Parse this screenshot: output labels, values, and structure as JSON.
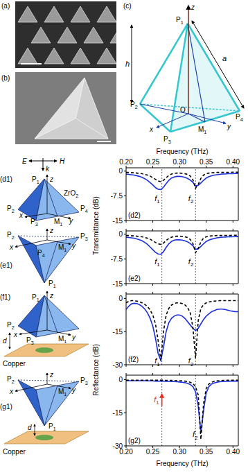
{
  "chart_data": [
    {
      "type": "line",
      "panel": "(d2)",
      "x_label": "Frequency (THz)",
      "y_label": "Transmittance (dB)",
      "x": [
        0.2,
        0.205,
        0.21,
        0.215,
        0.22,
        0.225,
        0.23,
        0.235,
        0.24,
        0.245,
        0.25,
        0.255,
        0.26,
        0.265,
        0.27,
        0.275,
        0.28,
        0.285,
        0.29,
        0.295,
        0.3,
        0.305,
        0.31,
        0.315,
        0.32,
        0.325,
        0.33,
        0.335,
        0.34,
        0.345,
        0.35,
        0.355,
        0.36,
        0.365,
        0.37,
        0.375,
        0.38,
        0.385,
        0.39,
        0.395,
        0.4,
        0.405,
        0.41
      ],
      "series": [
        {
          "color": "#1a2fe0",
          "line_style": "solid",
          "values": [
            -0.9,
            -1,
            -1.1,
            -1.2,
            -1.4,
            -1.6,
            -1.9,
            -2.3,
            -2.8,
            -3.5,
            -4.2,
            -5.0,
            -5.5,
            -5.6,
            -4.9,
            -3.8,
            -2.8,
            -2.1,
            -1.8,
            -1.6,
            -1.6,
            -1.7,
            -1.9,
            -2.2,
            -2.7,
            -3.4,
            -4.5,
            -4.3,
            -3.6,
            -2.8,
            -2.1,
            -1.7,
            -1.4,
            -1.2,
            -1.1,
            -1.0,
            -0.9,
            -0.9,
            -0.8,
            -0.8,
            -0.8,
            -0.7,
            -0.7
          ]
        },
        {
          "color": "#000000",
          "line_style": "dashed",
          "values": [
            -0.4,
            -0.4,
            -0.5,
            -0.5,
            -0.6,
            -0.7,
            -0.8,
            -1.0,
            -1.2,
            -1.5,
            -2.0,
            -2.5,
            -3.0,
            -3.2,
            -2.8,
            -2.0,
            -1.3,
            -0.9,
            -0.7,
            -0.6,
            -0.6,
            -0.7,
            -0.8,
            -1.0,
            -1.5,
            -2.6,
            -5.2,
            -4.0,
            -2.2,
            -1.2,
            -0.8,
            -0.6,
            -0.5,
            -0.5,
            -0.4,
            -0.4,
            -0.4,
            -0.4,
            -0.4,
            -0.4,
            -0.3,
            -0.3,
            -0.3
          ]
        }
      ],
      "xlim": [
        0.2,
        0.41
      ],
      "xticks": [
        {
          "value": 0.2,
          "label": "0.20"
        },
        0.25,
        {
          "value": 0.3,
          "label": "0.30"
        },
        0.35,
        {
          "value": 0.4,
          "label": "0.40"
        }
      ],
      "ylim": [
        -15,
        1
      ],
      "yticks": [
        -15,
        -7.5,
        0
      ],
      "vlines": [
        0.267,
        0.33
      ],
      "annotations": [
        {
          "text": "f1",
          "x": 0.267,
          "y": -9
        },
        {
          "text": "f2",
          "x": 0.33,
          "y": -9
        }
      ]
    },
    {
      "type": "line",
      "panel": "(e2)",
      "tick_labels": "y",
      "x": [
        0.2,
        0.205,
        0.21,
        0.215,
        0.22,
        0.225,
        0.23,
        0.235,
        0.24,
        0.245,
        0.25,
        0.255,
        0.26,
        0.265,
        0.27,
        0.275,
        0.28,
        0.285,
        0.29,
        0.295,
        0.3,
        0.305,
        0.31,
        0.315,
        0.32,
        0.325,
        0.33,
        0.335,
        0.34,
        0.345,
        0.35,
        0.355,
        0.36,
        0.365,
        0.37,
        0.375,
        0.38,
        0.385,
        0.39,
        0.395,
        0.4,
        0.405,
        0.41
      ],
      "series": [
        {
          "color": "#1a2fe0",
          "line_style": "solid",
          "values": [
            -0.9,
            -1,
            -1.1,
            -1.2,
            -1.4,
            -1.7,
            -2.0,
            -2.5,
            -3.1,
            -3.9,
            -4.7,
            -5.5,
            -6.0,
            -6.1,
            -5.3,
            -4.0,
            -2.9,
            -2.2,
            -1.8,
            -1.7,
            -1.7,
            -1.8,
            -2.0,
            -2.3,
            -2.8,
            -3.5,
            -4.6,
            -4.4,
            -3.7,
            -2.9,
            -2.2,
            -1.8,
            -1.5,
            -1.3,
            -1.1,
            -1.0,
            -0.9,
            -0.9,
            -0.8,
            -0.8,
            -0.8,
            -0.7,
            -0.7
          ]
        },
        {
          "color": "#000000",
          "line_style": "dashed",
          "values": [
            -0.4,
            -0.4,
            -0.5,
            -0.5,
            -0.6,
            -0.7,
            -0.8,
            -1.0,
            -1.2,
            -1.5,
            -2.0,
            -2.5,
            -2.9,
            -3.1,
            -2.7,
            -1.9,
            -1.3,
            -0.9,
            -0.7,
            -0.6,
            -0.6,
            -0.7,
            -0.8,
            -1.0,
            -1.6,
            -2.8,
            -5.6,
            -4.3,
            -2.3,
            -1.2,
            -0.8,
            -0.6,
            -0.5,
            -0.5,
            -0.4,
            -0.4,
            -0.4,
            -0.4,
            -0.4,
            -0.4,
            -0.3,
            -0.3,
            -0.3
          ]
        }
      ],
      "xlim": [
        0.2,
        0.41
      ],
      "xticks": [
        {
          "value": 0.2,
          "label": "0.20"
        },
        0.25,
        {
          "value": 0.3,
          "label": "0.30"
        },
        0.35,
        {
          "value": 0.4,
          "label": "0.40"
        }
      ],
      "ylim": [
        -15,
        1
      ],
      "yticks": [
        -15,
        -7.5,
        0
      ],
      "vlines": [
        0.267,
        0.33
      ],
      "annotations": [
        {
          "text": "f1",
          "x": 0.267,
          "y": -9
        },
        {
          "text": "f2",
          "x": 0.33,
          "y": -9
        }
      ]
    },
    {
      "type": "line",
      "panel": "(f2)",
      "y_label": "Reflectance (dB)",
      "tick_labels": "y",
      "x": [
        0.2,
        0.205,
        0.21,
        0.215,
        0.22,
        0.225,
        0.23,
        0.235,
        0.24,
        0.245,
        0.25,
        0.255,
        0.26,
        0.265,
        0.27,
        0.275,
        0.28,
        0.285,
        0.29,
        0.295,
        0.3,
        0.305,
        0.31,
        0.315,
        0.32,
        0.325,
        0.33,
        0.335,
        0.34,
        0.345,
        0.35,
        0.355,
        0.36,
        0.365,
        0.37,
        0.375,
        0.38,
        0.385,
        0.39,
        0.395,
        0.4,
        0.405,
        0.41
      ],
      "series": [
        {
          "color": "#1a2fe0",
          "line_style": "solid",
          "values": [
            -5,
            -3.5,
            -2.5,
            -2.2,
            -2.3,
            -2.8,
            -3.6,
            -4.8,
            -6.5,
            -9,
            -12.5,
            -18,
            -25,
            -28,
            -22,
            -15,
            -11,
            -9,
            -8,
            -7.5,
            -7.5,
            -8,
            -9,
            -10.5,
            -12,
            -13.5,
            -14.5,
            -13.5,
            -11.5,
            -9.5,
            -8,
            -7,
            -6,
            -5.5,
            -5,
            -4.8,
            -4.8,
            -5,
            -5.3,
            -5.6,
            -5.8,
            -6,
            -6
          ]
        },
        {
          "color": "#000000",
          "line_style": "dashed",
          "values": [
            -2,
            -1.3,
            -1,
            -1,
            -1.2,
            -1.5,
            -2,
            -2.7,
            -3.7,
            -5.2,
            -7.5,
            -11.5,
            -19,
            -28,
            -15,
            -7.5,
            -4.5,
            -3,
            -2.3,
            -2,
            -2,
            -2.3,
            -2.9,
            -4,
            -6.5,
            -13,
            -27,
            -10,
            -4.5,
            -2.8,
            -2,
            -1.6,
            -1.4,
            -1.2,
            -1.1,
            -1,
            -1,
            -1,
            -1,
            -1,
            -1,
            -1,
            -1
          ]
        }
      ],
      "xlim": [
        0.2,
        0.41
      ],
      "xticks": [
        {
          "value": 0.2,
          "label": "0.20"
        },
        0.25,
        {
          "value": 0.3,
          "label": "0.30"
        },
        0.35,
        {
          "value": 0.4,
          "label": "0.40"
        }
      ],
      "ylim": [
        -30,
        2
      ],
      "yticks": [
        -30,
        -15,
        0
      ],
      "vlines": [
        0.267,
        0.33
      ],
      "annotations": [
        {
          "text": "f1",
          "x": 0.267,
          "y": -29.5
        },
        {
          "text": "f2",
          "x": 0.33,
          "y": -29.5
        }
      ]
    },
    {
      "type": "line",
      "panel": "(g2)",
      "x_label": "Frequency (THz)",
      "x": [
        0.2,
        0.205,
        0.21,
        0.215,
        0.22,
        0.225,
        0.23,
        0.235,
        0.24,
        0.245,
        0.25,
        0.255,
        0.26,
        0.265,
        0.27,
        0.275,
        0.28,
        0.285,
        0.29,
        0.295,
        0.3,
        0.305,
        0.31,
        0.315,
        0.32,
        0.325,
        0.33,
        0.335,
        0.34,
        0.345,
        0.35,
        0.355,
        0.36,
        0.365,
        0.37,
        0.375,
        0.38,
        0.385,
        0.39,
        0.395,
        0.4,
        0.405,
        0.41
      ],
      "series": [
        {
          "color": "#1a2fe0",
          "line_style": "solid",
          "values": [
            -0.5,
            -0.5,
            -0.5,
            -0.5,
            -0.5,
            -0.5,
            -0.5,
            -0.5,
            -0.6,
            -0.6,
            -0.6,
            -0.7,
            -0.7,
            -0.7,
            -0.7,
            -0.8,
            -0.8,
            -0.9,
            -0.9,
            -1.0,
            -1.1,
            -1.2,
            -1.4,
            -1.7,
            -2.2,
            -3.2,
            -5.5,
            -12,
            -24,
            -14,
            -6,
            -3.2,
            -2,
            -1.5,
            -1.2,
            -1.0,
            -0.9,
            -0.8,
            -0.8,
            -0.7,
            -0.7,
            -0.7,
            -0.7
          ]
        },
        {
          "color": "#000000",
          "line_style": "dashed",
          "values": [
            -0.3,
            -0.3,
            -0.3,
            -0.3,
            -0.3,
            -0.3,
            -0.3,
            -0.3,
            -0.3,
            -0.3,
            -0.3,
            -0.3,
            -0.3,
            -0.3,
            -0.3,
            -0.4,
            -0.4,
            -0.4,
            -0.4,
            -0.5,
            -0.5,
            -0.6,
            -0.7,
            -0.9,
            -1.2,
            -1.8,
            -3.2,
            -7,
            -27,
            -11,
            -4,
            -2,
            -1.2,
            -0.8,
            -0.6,
            -0.5,
            -0.4,
            -0.4,
            -0.3,
            -0.3,
            -0.3,
            -0.3,
            -0.3
          ]
        }
      ],
      "xlim": [
        0.2,
        0.41
      ],
      "xticks": [
        {
          "value": 0.2,
          "label": "0.20"
        },
        0.25,
        {
          "value": 0.3,
          "label": "0.30"
        },
        0.35,
        {
          "value": 0.4,
          "label": "0.40"
        }
      ],
      "ylim": [
        -30,
        2
      ],
      "yticks": [
        -30,
        -15,
        0
      ],
      "vlines": [
        0.267,
        0.33
      ],
      "annotations": [
        {
          "text": "f1",
          "x": 0.267,
          "y": -12,
          "color": "#e8291c"
        },
        {
          "text": "f2",
          "x": 0.338,
          "y": -26
        }
      ]
    }
  ],
  "diagrams": {
    "a": {
      "label": "(a)"
    },
    "b": {
      "label": "(b)"
    },
    "c": {
      "label": "(c)",
      "points": [
        "P1",
        "P2",
        "P3",
        "P4",
        "O",
        "M1"
      ],
      "axes": [
        "x",
        "y",
        "z"
      ],
      "height": "h",
      "edge": "a"
    },
    "d1": {
      "label": "(d1)",
      "incident": [
        "E",
        "k",
        "H"
      ],
      "points": [
        "P1",
        "P2",
        "P3",
        "P4",
        "M1"
      ],
      "axes": [
        "x",
        "y",
        "z"
      ],
      "material": "ZrO2"
    },
    "e1": {
      "label": "(e1)",
      "points": [
        "P1",
        "P2",
        "P3",
        "P4",
        "M1"
      ],
      "axes": [
        "x",
        "y",
        "z"
      ]
    },
    "f1": {
      "label": "(f1)",
      "points": [
        "P1",
        "P2",
        "P3",
        "M1"
      ],
      "axes": [
        "x",
        "y",
        "z"
      ],
      "gap": "d",
      "substrate": "Copper"
    },
    "g1": {
      "label": "(g1)",
      "points": [
        "P1",
        "P2",
        "P3",
        "M1"
      ],
      "axes": [
        "x",
        "y",
        "z"
      ],
      "gap": "d",
      "substrate": "Copper"
    }
  }
}
